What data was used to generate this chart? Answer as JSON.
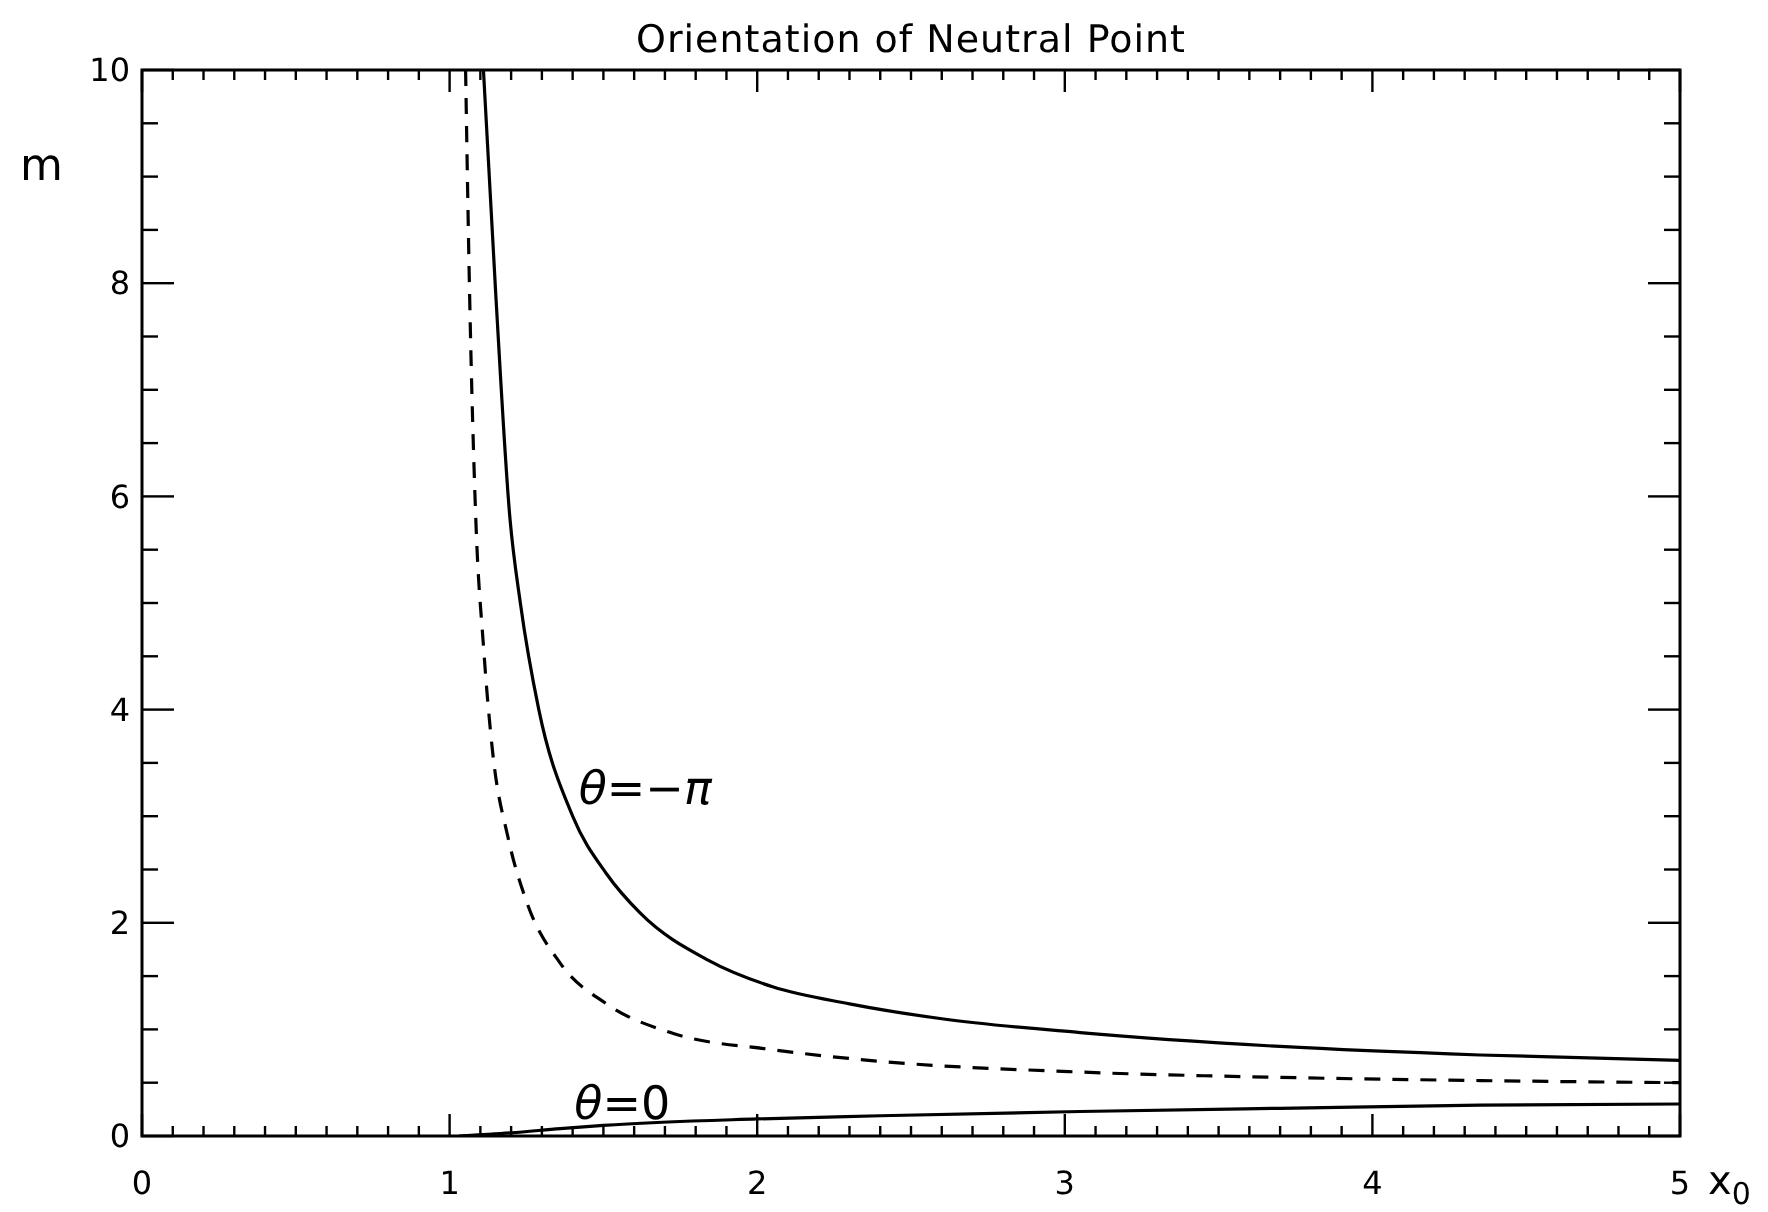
{
  "chart_data": {
    "type": "line",
    "title": "Orientation of Neutral Point",
    "xlabel": "x$_{0}$",
    "ylabel": "m",
    "xlim": [
      0,
      5
    ],
    "ylim": [
      0,
      10
    ],
    "xticks": [
      0,
      {
        "value": 0.1,
        "label": null
      },
      {
        "value": 0.2,
        "label": null
      },
      {
        "value": 0.3,
        "label": null
      },
      {
        "value": 0.4,
        "label": null
      },
      {
        "value": 0.5,
        "label": null
      },
      {
        "value": 0.6,
        "label": null
      },
      {
        "value": 0.7,
        "label": null
      },
      {
        "value": 0.8,
        "label": null
      },
      {
        "value": 0.9,
        "label": null
      },
      1,
      {
        "value": 1.1,
        "label": null
      },
      {
        "value": 1.2,
        "label": null
      },
      {
        "value": 1.3,
        "label": null
      },
      {
        "value": 1.4,
        "label": null
      },
      {
        "value": 1.5,
        "label": null
      },
      {
        "value": 1.6,
        "label": null
      },
      {
        "value": 1.7,
        "label": null
      },
      {
        "value": 1.8,
        "label": null
      },
      {
        "value": 1.9,
        "label": null
      },
      2,
      {
        "value": 2.1,
        "label": null
      },
      {
        "value": 2.2,
        "label": null
      },
      {
        "value": 2.3,
        "label": null
      },
      {
        "value": 2.4,
        "label": null
      },
      {
        "value": 2.5,
        "label": null
      },
      {
        "value": 2.6,
        "label": null
      },
      {
        "value": 2.7,
        "label": null
      },
      {
        "value": 2.8,
        "label": null
      },
      {
        "value": 2.9,
        "label": null
      },
      3,
      {
        "value": 3.1,
        "label": null
      },
      {
        "value": 3.2,
        "label": null
      },
      {
        "value": 3.3,
        "label": null
      },
      {
        "value": 3.4,
        "label": null
      },
      {
        "value": 3.5,
        "label": null
      },
      {
        "value": 3.6,
        "label": null
      },
      {
        "value": 3.7,
        "label": null
      },
      {
        "value": 3.8,
        "label": null
      },
      {
        "value": 3.9,
        "label": null
      },
      4,
      {
        "value": 4.1,
        "label": null
      },
      {
        "value": 4.2,
        "label": null
      },
      {
        "value": 4.3,
        "label": null
      },
      {
        "value": 4.4,
        "label": null
      },
      {
        "value": 4.5,
        "label": null
      },
      {
        "value": 4.6,
        "label": null
      },
      {
        "value": 4.7,
        "label": null
      },
      {
        "value": 4.8,
        "label": null
      },
      {
        "value": 4.9,
        "label": null
      },
      5
    ],
    "yticks": [
      0,
      {
        "value": 0.5,
        "label": null
      },
      {
        "value": 1,
        "label": null
      },
      {
        "value": 1.5,
        "label": null
      },
      2,
      {
        "value": 2.5,
        "label": null
      },
      {
        "value": 3,
        "label": null
      },
      {
        "value": 3.5,
        "label": null
      },
      4,
      {
        "value": 4.5,
        "label": null
      },
      {
        "value": 5,
        "label": null
      },
      {
        "value": 5.5,
        "label": null
      },
      6,
      {
        "value": 6.5,
        "label": null
      },
      {
        "value": 7,
        "label": null
      },
      {
        "value": 7.5,
        "label": null
      },
      8,
      {
        "value": 8.5,
        "label": null
      },
      {
        "value": 9,
        "label": null
      },
      {
        "value": 9.5,
        "label": null
      },
      10
    ],
    "series": [
      {
        "name": "θ=−π",
        "color": "#000000",
        "x": [
          1.11,
          1.15,
          1.196,
          1.23,
          1.29,
          1.4,
          1.51,
          1.62,
          1.84,
          2.05,
          2.3,
          2.6,
          3.05,
          3.7,
          4.35,
          5.0
        ],
        "values": [
          10,
          7.9,
          5.8,
          5,
          4,
          3,
          2.46,
          2.09,
          1.65,
          1.4,
          1.24,
          1.1,
          0.97,
          0.84,
          0.76,
          0.71
        ]
      },
      {
        "color": "#000000",
        "line_style": "dashed",
        "x": [
          1.052,
          1.065,
          1.085,
          1.11,
          1.14,
          1.19,
          1.25,
          1.36,
          1.51,
          1.73,
          2.05,
          2.4,
          3.05,
          3.7,
          4.35,
          5.0
        ],
        "values": [
          10,
          7.9,
          5.8,
          4.6,
          3.6,
          2.8,
          2.2,
          1.62,
          1.24,
          0.96,
          0.81,
          0.7,
          0.6,
          0.55,
          0.52,
          0.5
        ]
      },
      {
        "name": "θ=0",
        "color": "#000000",
        "x": [
          1.03,
          1.2,
          1.36,
          1.5,
          2.0,
          2.4,
          3.05,
          3.7,
          4.35,
          5.0
        ],
        "values": [
          0,
          0.03,
          0.07,
          0.1,
          0.16,
          0.19,
          0.23,
          0.26,
          0.29,
          0.3
        ]
      }
    ]
  }
}
